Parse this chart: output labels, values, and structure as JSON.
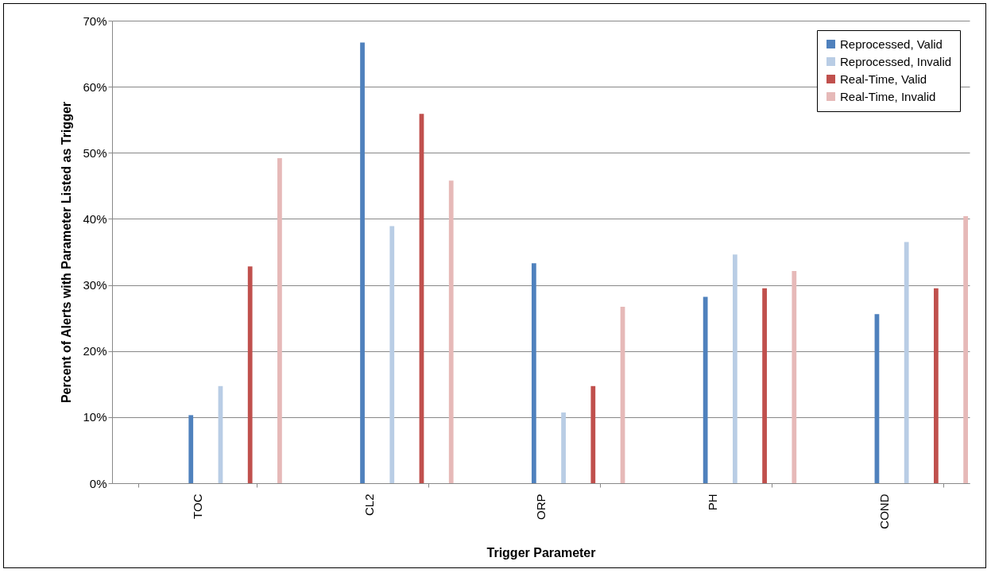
{
  "chart_data": {
    "type": "bar",
    "xlabel": "Trigger Parameter",
    "ylabel": "Percent of Alerts with Parameter Listed as Trigger",
    "categories": [
      "TOC",
      "CL2",
      "ORP",
      "PH",
      "COND"
    ],
    "series": [
      {
        "name": "Reprocessed, Valid",
        "color": "#4f81bd",
        "values": [
          10.3,
          66.7,
          33.3,
          28.2,
          25.6
        ]
      },
      {
        "name": "Reprocessed, Invalid",
        "color": "#b9cde5",
        "values": [
          14.7,
          38.9,
          10.7,
          34.6,
          36.5
        ]
      },
      {
        "name": "Real-Time, Valid",
        "color": "#c0504d",
        "values": [
          32.8,
          55.9,
          14.7,
          29.5,
          29.5
        ]
      },
      {
        "name": "Real-Time, Invalid",
        "color": "#e6b9b8",
        "values": [
          49.2,
          45.8,
          26.7,
          32.1,
          40.4
        ]
      }
    ],
    "ylim": [
      0,
      70
    ],
    "yticks": [
      {
        "value": 0,
        "label": "0%"
      },
      {
        "value": 10,
        "label": "10%"
      },
      {
        "value": 20,
        "label": "20%"
      },
      {
        "value": 30,
        "label": "30%"
      },
      {
        "value": 40,
        "label": "40%"
      },
      {
        "value": 50,
        "label": "50%"
      },
      {
        "value": 60,
        "label": "60%"
      },
      {
        "value": 70,
        "label": "70%"
      }
    ],
    "grid": "y",
    "legend": "top right"
  }
}
